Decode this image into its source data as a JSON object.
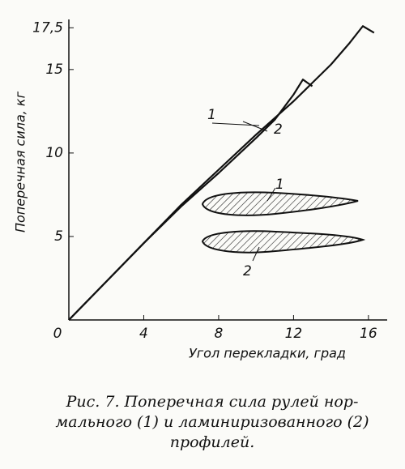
{
  "chart_data": {
    "type": "line",
    "y_label": "Поперечная сила, кг",
    "x_label": "Угол перекладки, град",
    "xlim": [
      0,
      17
    ],
    "ylim": [
      0,
      18
    ],
    "xticks": [
      0,
      4,
      8,
      12,
      16
    ],
    "yticks": [
      5,
      10,
      15,
      {
        "value": 17.5,
        "label": "17,5"
      }
    ],
    "color": "#111111",
    "series": [
      {
        "x": [
          0,
          2,
          4,
          6,
          8,
          10,
          12,
          14,
          15,
          15.7,
          16.3
        ],
        "values": [
          0,
          2.3,
          4.6,
          6.9,
          9.0,
          11.1,
          13.1,
          15.3,
          16.6,
          17.6,
          17.2
        ]
      },
      {
        "x": [
          0,
          2,
          4,
          6,
          8,
          10,
          11,
          12,
          12.5,
          13
        ],
        "values": [
          0,
          2.3,
          4.6,
          6.8,
          8.8,
          10.9,
          12.0,
          13.5,
          14.4,
          14.0
        ]
      }
    ],
    "annotations": [
      "1",
      "2",
      "1",
      "2"
    ],
    "caption": [
      "Рис. 7. Поперечная сила рулей нор-",
      "мального (1) и ламиниризованного (2)",
      "профилей."
    ]
  }
}
